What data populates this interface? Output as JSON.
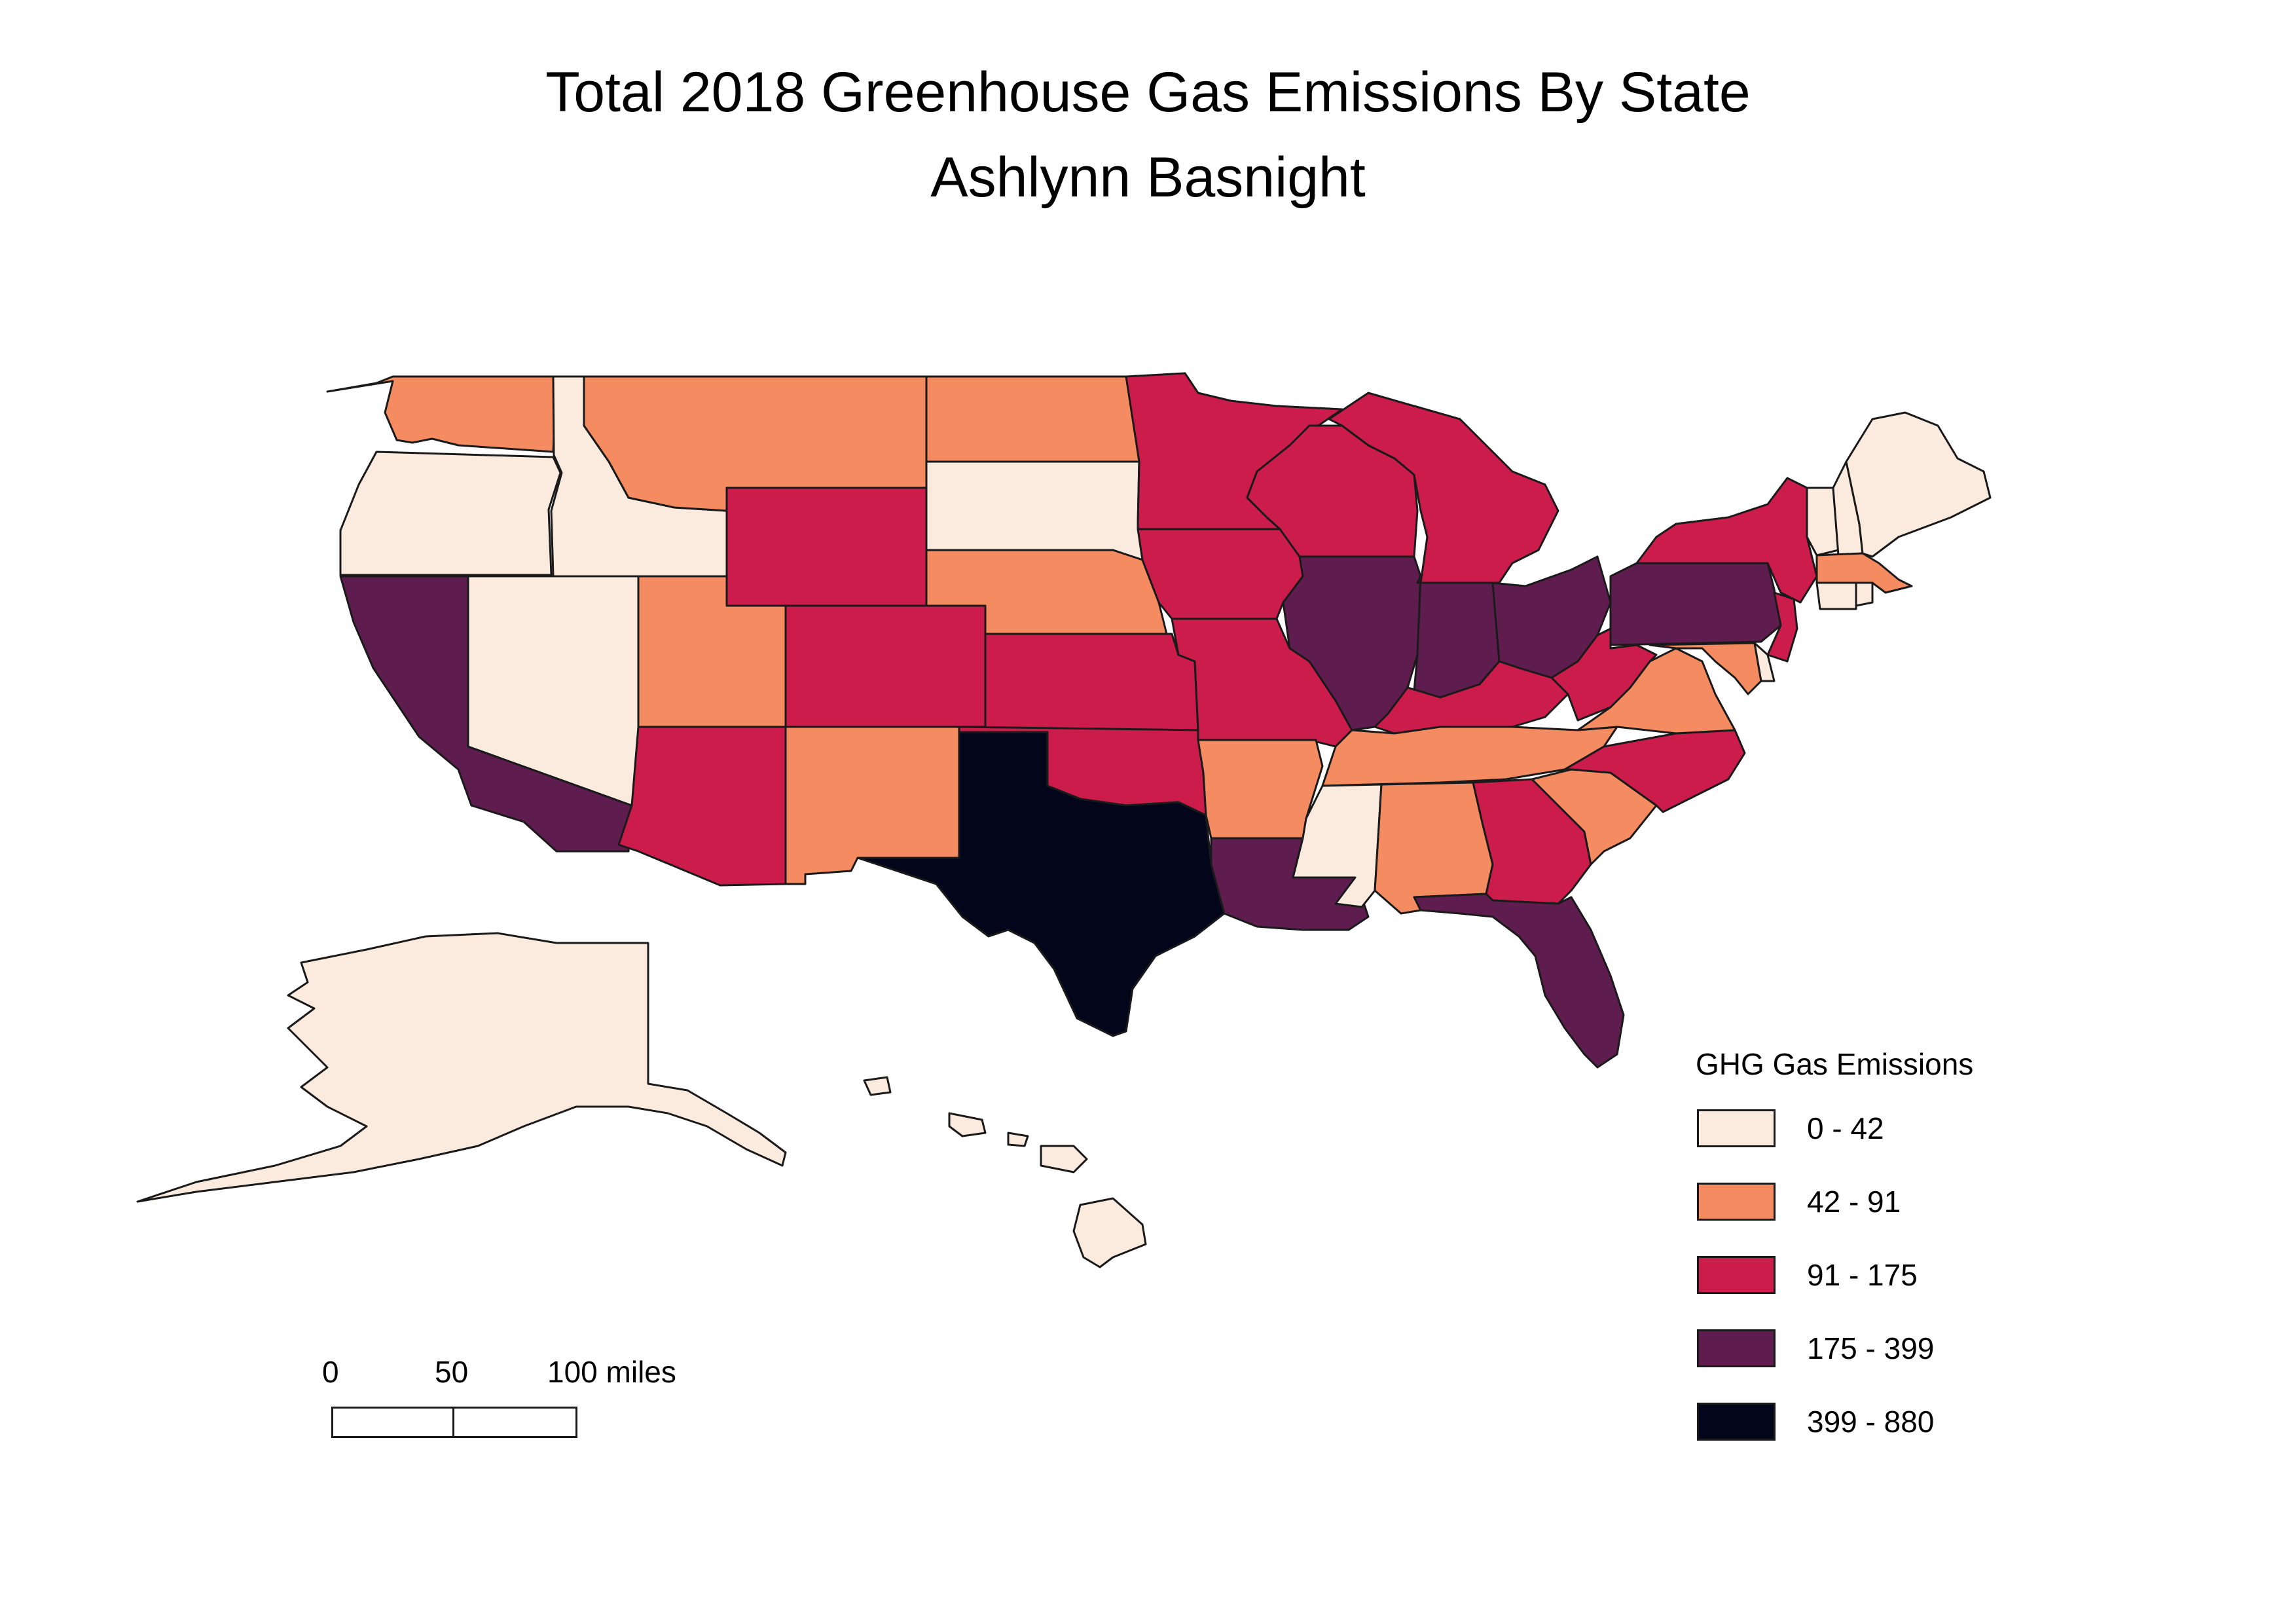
{
  "title": "Total 2018 Greenhouse Gas Emissions By State",
  "author": "Ashlynn Basnight",
  "legend": {
    "title": "GHG Gas Emissions",
    "classes": [
      {
        "label": "0 - 42",
        "color": "#fbeade"
      },
      {
        "label": "42 - 91",
        "color": "#f58b61"
      },
      {
        "label": "91 - 175",
        "color": "#cc1c4b"
      },
      {
        "label": "175 - 399",
        "color": "#5f1c4f"
      },
      {
        "label": "399 - 880",
        "color": "#03051a"
      }
    ]
  },
  "scale_bar": {
    "labels": [
      "0",
      "50",
      "100 miles"
    ]
  },
  "states": [
    {
      "name": "Washington",
      "class": 1
    },
    {
      "name": "Oregon",
      "class": 0
    },
    {
      "name": "California",
      "class": 3
    },
    {
      "name": "Idaho",
      "class": 0
    },
    {
      "name": "Nevada",
      "class": 0
    },
    {
      "name": "Montana",
      "class": 1
    },
    {
      "name": "Wyoming",
      "class": 2
    },
    {
      "name": "Utah",
      "class": 1
    },
    {
      "name": "Arizona",
      "class": 2
    },
    {
      "name": "Colorado",
      "class": 2
    },
    {
      "name": "New Mexico",
      "class": 1
    },
    {
      "name": "North Dakota",
      "class": 1
    },
    {
      "name": "South Dakota",
      "class": 0
    },
    {
      "name": "Nebraska",
      "class": 1
    },
    {
      "name": "Kansas",
      "class": 2
    },
    {
      "name": "Oklahoma",
      "class": 2
    },
    {
      "name": "Texas",
      "class": 4
    },
    {
      "name": "Minnesota",
      "class": 2
    },
    {
      "name": "Iowa",
      "class": 2
    },
    {
      "name": "Missouri",
      "class": 2
    },
    {
      "name": "Arkansas",
      "class": 1
    },
    {
      "name": "Louisiana",
      "class": 3
    },
    {
      "name": "Wisconsin",
      "class": 2
    },
    {
      "name": "Illinois",
      "class": 3
    },
    {
      "name": "Michigan",
      "class": 2
    },
    {
      "name": "Indiana",
      "class": 3
    },
    {
      "name": "Ohio",
      "class": 3
    },
    {
      "name": "Kentucky",
      "class": 2
    },
    {
      "name": "Tennessee",
      "class": 1
    },
    {
      "name": "Mississippi",
      "class": 0
    },
    {
      "name": "Alabama",
      "class": 1
    },
    {
      "name": "Georgia",
      "class": 2
    },
    {
      "name": "Florida",
      "class": 3
    },
    {
      "name": "South Carolina",
      "class": 1
    },
    {
      "name": "North Carolina",
      "class": 2
    },
    {
      "name": "Virginia",
      "class": 1
    },
    {
      "name": "West Virginia",
      "class": 2
    },
    {
      "name": "Pennsylvania",
      "class": 3
    },
    {
      "name": "New York",
      "class": 2
    },
    {
      "name": "New Jersey",
      "class": 2
    },
    {
      "name": "Maryland",
      "class": 1
    },
    {
      "name": "Delaware",
      "class": 0
    },
    {
      "name": "Vermont",
      "class": 0
    },
    {
      "name": "New Hampshire",
      "class": 0
    },
    {
      "name": "Maine",
      "class": 0
    },
    {
      "name": "Massachusetts",
      "class": 1
    },
    {
      "name": "Connecticut",
      "class": 0
    },
    {
      "name": "Rhode Island",
      "class": 0
    },
    {
      "name": "Alaska",
      "class": 0
    },
    {
      "name": "Hawaii",
      "class": 0
    }
  ]
}
